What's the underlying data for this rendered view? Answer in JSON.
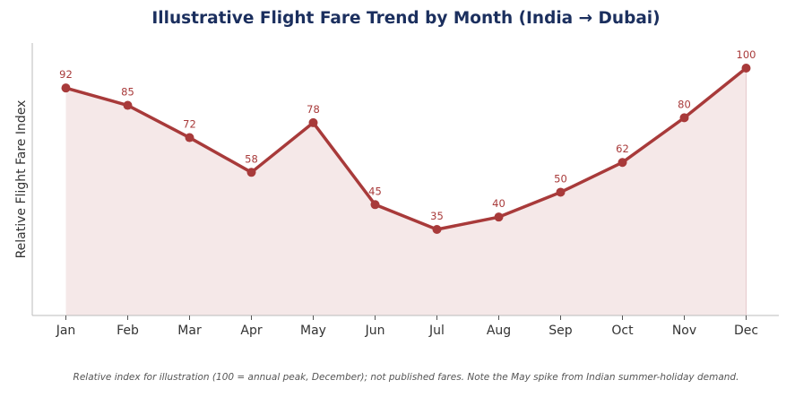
{
  "chart_data": {
    "type": "area",
    "title": "Illustrative Flight Fare Trend by Month (India → Dubai)",
    "ylabel": "Relative Flight Fare Index",
    "xlabel": "",
    "categories": [
      "Jan",
      "Feb",
      "Mar",
      "Apr",
      "May",
      "Jun",
      "Jul",
      "Aug",
      "Sep",
      "Oct",
      "Nov",
      "Dec"
    ],
    "values": [
      92,
      85,
      72,
      58,
      78,
      45,
      35,
      40,
      50,
      62,
      80,
      100
    ],
    "ylim": [
      0,
      100
    ],
    "show_y_tick_labels": false,
    "grid": false,
    "data_labels": true,
    "caption": "Relative index for illustration (100 = annual peak, December); not published fares. Note the May spike from Indian summer-holiday demand.",
    "colors": {
      "line": "#a83a3a",
      "fill": "#f5e8e8",
      "title": "#1b2f5e",
      "axis": "#bbbbbb"
    }
  }
}
